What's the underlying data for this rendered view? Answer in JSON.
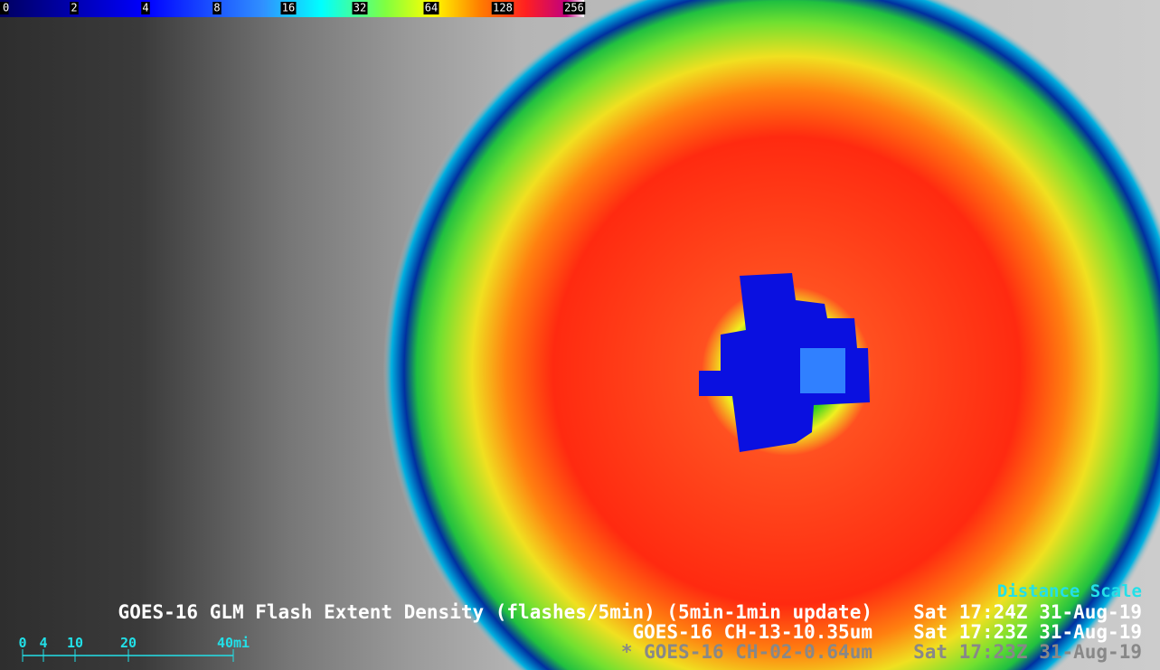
{
  "colorbar": {
    "labels": [
      "0",
      "2",
      "4",
      "8",
      "16",
      "32",
      "64",
      "128",
      "256"
    ]
  },
  "legend": {
    "title": "Distance Scale",
    "layers": [
      {
        "name": "GOES-16 GLM Flash Extent Density (flashes/5min) (5min-1min update)",
        "time": "Sat 17:24Z 31-Aug-19"
      },
      {
        "name": "GOES-16 CH-13-10.35um",
        "time": "Sat 17:23Z 31-Aug-19"
      },
      {
        "name": "* GOES-16 CH-02-0.64um",
        "time": "Sat 17:23Z 31-Aug-19"
      }
    ]
  },
  "scale": {
    "labels": [
      "0",
      "4",
      "10",
      "20",
      "40mi"
    ]
  }
}
